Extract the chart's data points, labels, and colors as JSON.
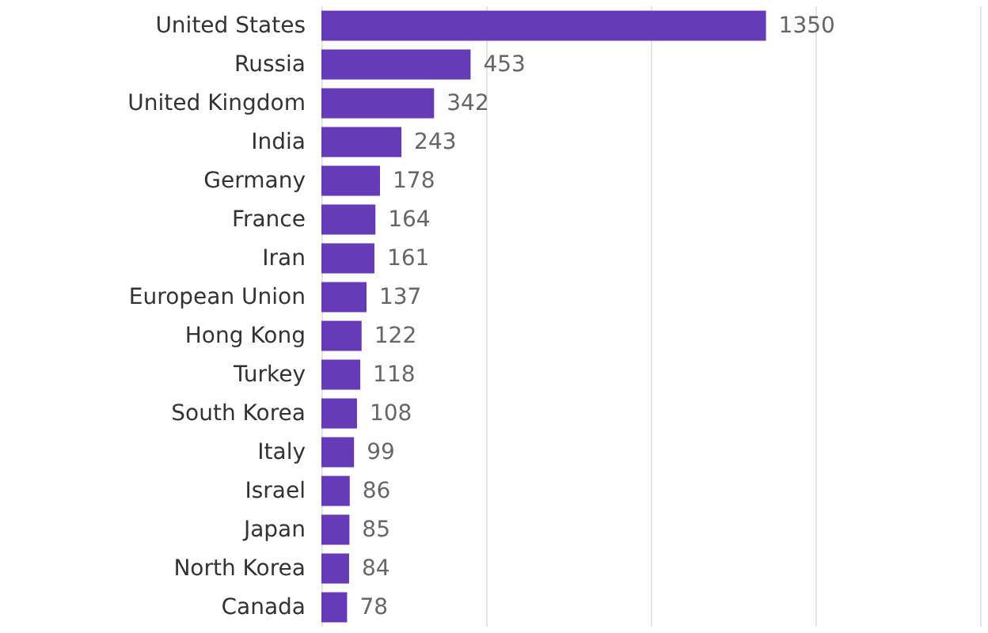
{
  "chart_data": {
    "type": "bar",
    "orientation": "horizontal",
    "categories": [
      "United States",
      "Russia",
      "United Kingdom",
      "India",
      "Germany",
      "France",
      "Iran",
      "European Union",
      "Hong Kong",
      "Turkey",
      "South Korea",
      "Italy",
      "Israel",
      "Japan",
      "North Korea",
      "Canada"
    ],
    "values": [
      1350,
      453,
      342,
      243,
      178,
      164,
      161,
      137,
      122,
      118,
      108,
      99,
      86,
      85,
      84,
      78
    ],
    "color": "#673ab7",
    "xlim": [
      0,
      2000
    ],
    "xticks": [
      0,
      500,
      1000,
      1500,
      2000
    ],
    "grid": "x",
    "tick_labels": "y",
    "data_labels": true
  }
}
